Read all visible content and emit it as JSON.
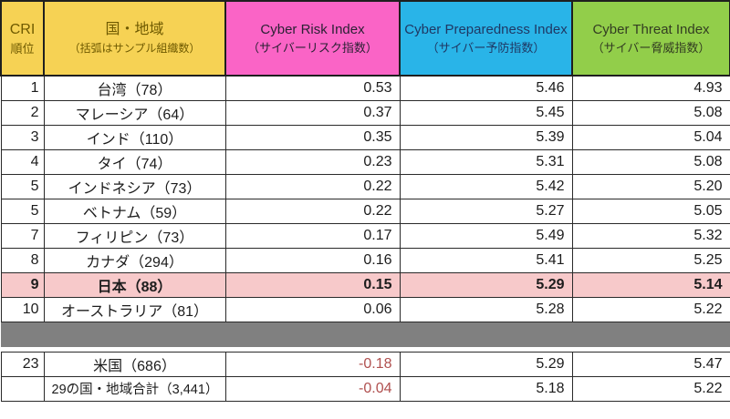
{
  "palette": {
    "header_yellow": "#f6d254",
    "header_pink": "#fa64c6",
    "header_cyan": "#29b4e8",
    "header_green": "#92ce4a",
    "highlight_pink": "#f7c9ca",
    "separator_gray": "#808080",
    "negative_red": "#b0504f"
  },
  "header": {
    "cells": [
      {
        "line1": "CRI",
        "line2": "順位",
        "bg": "#f6d254",
        "fg": "#6f5a00"
      },
      {
        "line1": "国・地域",
        "line2": "（括弧はサンプル組織数）",
        "bg": "#f6d254",
        "fg": "#6f5a00"
      },
      {
        "line1": "Cyber Risk Index",
        "line2": "（サイバーリスク指数）",
        "bg": "#fa64c6",
        "fg": "#2b2134"
      },
      {
        "line1": "Cyber Preparedness Index",
        "line2": "（サイバー予防指数）",
        "bg": "#29b4e8",
        "fg": "#1f3864"
      },
      {
        "line1": "Cyber Threat Index",
        "line2": "（サイバー脅威指数）",
        "bg": "#92ce4a",
        "fg": "#333d22"
      }
    ]
  },
  "table": {
    "rows": [
      {
        "type": "data",
        "rank": "1",
        "country": "台湾（78）",
        "cri": "0.53",
        "prep": "5.46",
        "threat": "4.93",
        "highlight": false
      },
      {
        "type": "data",
        "rank": "2",
        "country": "マレーシア（64）",
        "cri": "0.37",
        "prep": "5.45",
        "threat": "5.08",
        "highlight": false
      },
      {
        "type": "data",
        "rank": "3",
        "country": "インド（110）",
        "cri": "0.35",
        "prep": "5.39",
        "threat": "5.04",
        "highlight": false
      },
      {
        "type": "data",
        "rank": "4",
        "country": "タイ（74）",
        "cri": "0.23",
        "prep": "5.31",
        "threat": "5.08",
        "highlight": false
      },
      {
        "type": "data",
        "rank": "5",
        "country": "インドネシア（73）",
        "cri": "0.22",
        "prep": "5.42",
        "threat": "5.20",
        "highlight": false
      },
      {
        "type": "data",
        "rank": "5",
        "country": "ベトナム（59）",
        "cri": "0.22",
        "prep": "5.27",
        "threat": "5.05",
        "highlight": false
      },
      {
        "type": "data",
        "rank": "7",
        "country": "フィリピン（73）",
        "cri": "0.17",
        "prep": "5.49",
        "threat": "5.32",
        "highlight": false
      },
      {
        "type": "data",
        "rank": "8",
        "country": "カナダ（294）",
        "cri": "0.16",
        "prep": "5.41",
        "threat": "5.25",
        "highlight": false
      },
      {
        "type": "data",
        "rank": "9",
        "country": "日本（88）",
        "cri": "0.15",
        "prep": "5.29",
        "threat": "5.14",
        "highlight": true
      },
      {
        "type": "data",
        "rank": "10",
        "country": "オーストラリア（81）",
        "cri": "0.06",
        "prep": "5.28",
        "threat": "5.22",
        "highlight": false
      },
      {
        "type": "separator"
      },
      {
        "type": "spacer"
      },
      {
        "type": "data",
        "rank": "23",
        "country": "米国（686）",
        "cri": "-0.18",
        "prep": "5.29",
        "threat": "5.47",
        "highlight": false
      },
      {
        "type": "data",
        "rank": "",
        "country": "29の国・地域合計（3,441）",
        "cri": "-0.04",
        "prep": "5.18",
        "threat": "5.22",
        "highlight": false,
        "country_align": "left"
      }
    ]
  },
  "chart_data": {
    "type": "table",
    "title": "CRI ranking by country/region (Cyber Risk Index)",
    "columns": [
      "CRI順位",
      "国・地域（括弧はサンプル組織数）",
      "Cyber Risk Index（サイバーリスク指数）",
      "Cyber Preparedness Index（サイバー予防指数）",
      "Cyber Threat Index（サイバー脅威指数）"
    ],
    "rows": [
      [
        "1",
        "台湾（78）",
        0.53,
        5.46,
        4.93
      ],
      [
        "2",
        "マレーシア（64）",
        0.37,
        5.45,
        5.08
      ],
      [
        "3",
        "インド（110）",
        0.35,
        5.39,
        5.04
      ],
      [
        "4",
        "タイ（74）",
        0.23,
        5.31,
        5.08
      ],
      [
        "5",
        "インドネシア（73）",
        0.22,
        5.42,
        5.2
      ],
      [
        "5",
        "ベトナム（59）",
        0.22,
        5.27,
        5.05
      ],
      [
        "7",
        "フィリピン（73）",
        0.17,
        5.49,
        5.32
      ],
      [
        "8",
        "カナダ（294）",
        0.16,
        5.41,
        5.25
      ],
      [
        "9",
        "日本（88）",
        0.15,
        5.29,
        5.14
      ],
      [
        "10",
        "オーストラリア（81）",
        0.06,
        5.28,
        5.22
      ],
      [
        "23",
        "米国（686）",
        -0.18,
        5.29,
        5.47
      ],
      [
        "",
        "29の国・地域合計（3,441）",
        -0.04,
        5.18,
        5.22
      ]
    ],
    "notes": "Row 9 (日本) highlighted in pink bold; gray separator band between rank 10 and rank 23; negative CRI values shown in red."
  }
}
